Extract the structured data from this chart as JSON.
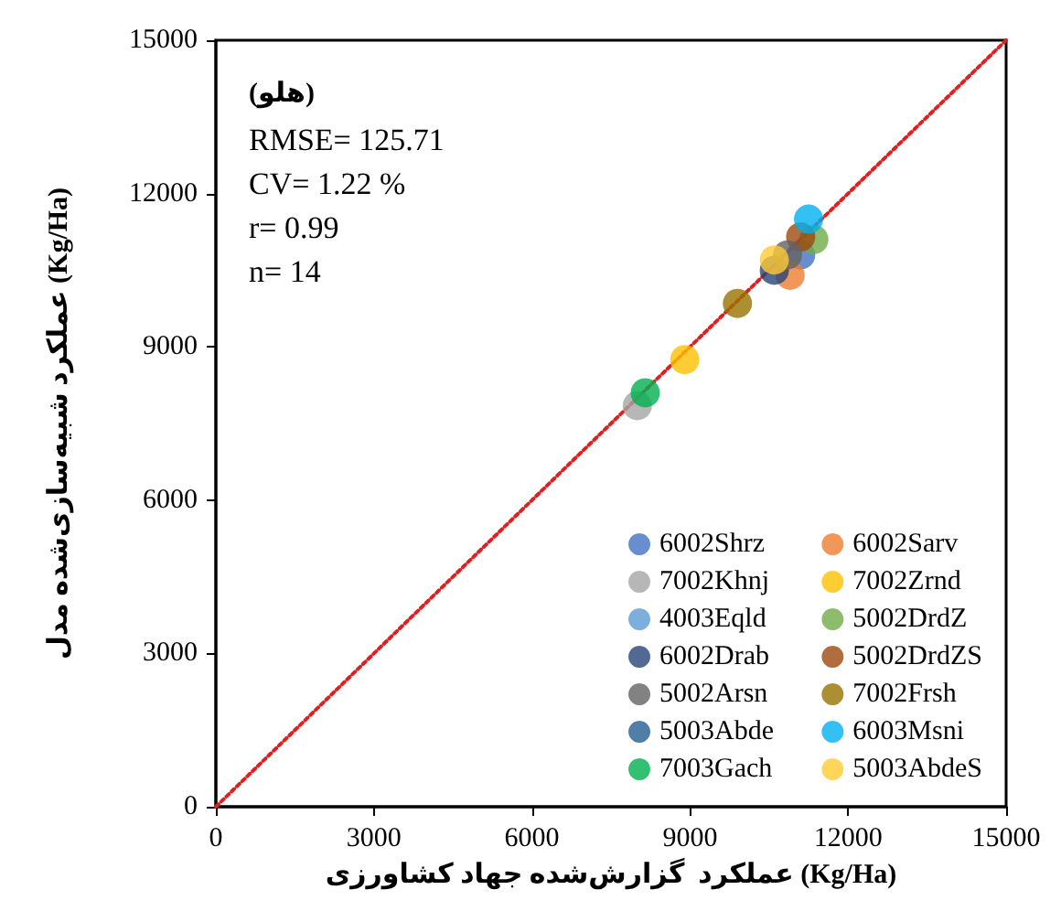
{
  "chart_data": {
    "type": "scatter",
    "xlabel": "عملکرد  گزارش‌شده جهاد کشاورزی (Kg/Ha)",
    "ylabel": "عملکرد شبیه‌سازی‌شده مدل (Kg/Ha)",
    "xlim": [
      0,
      15000
    ],
    "ylim": [
      0,
      15000
    ],
    "xticks": [
      0,
      3000,
      6000,
      9000,
      12000,
      15000
    ],
    "yticks": [
      0,
      3000,
      6000,
      9000,
      12000,
      15000
    ],
    "grid": false,
    "legend": "bottom right",
    "marker": "circle",
    "annotations": [
      "(هلو)",
      "RMSE= 125.71",
      "CV= 1.22 %",
      "r= 0.99",
      "n= 14"
    ],
    "series": [
      {
        "name": "6002Shrz",
        "color": "#4472c4",
        "x": [
          11100
        ],
        "values": [
          10800
        ]
      },
      {
        "name": "6002Sarv",
        "color": "#ed7d31",
        "x": [
          10900
        ],
        "values": [
          10400
        ]
      },
      {
        "name": "7002Khnj",
        "color": "#a5a5a5",
        "x": [
          8000
        ],
        "values": [
          7850
        ]
      },
      {
        "name": "7002Zrnd",
        "color": "#ffc000",
        "x": [
          8900
        ],
        "values": [
          8750
        ]
      },
      {
        "name": "4003Eqld",
        "color": "#5b9bd5",
        "x": [
          null
        ],
        "values": [
          null
        ]
      },
      {
        "name": "5002DrdZ",
        "color": "#70ad47",
        "x": [
          11350
        ],
        "values": [
          11100
        ]
      },
      {
        "name": "6002Drab",
        "color": "#264478",
        "x": [
          10600
        ],
        "values": [
          10500
        ]
      },
      {
        "name": "5002DrdZS",
        "color": "#9e480e",
        "x": [
          11100
        ],
        "values": [
          11150
        ]
      },
      {
        "name": "5002Arsn",
        "color": "#636363",
        "x": [
          10850
        ],
        "values": [
          10800
        ]
      },
      {
        "name": "7002Frsh",
        "color": "#997300",
        "x": [
          9900
        ],
        "values": [
          9850
        ]
      },
      {
        "name": "5003Abde",
        "color": "#255e91",
        "x": [
          null
        ],
        "values": [
          null
        ]
      },
      {
        "name": "6003Msni",
        "color": "#00b0f0",
        "x": [
          11250
        ],
        "values": [
          11500
        ]
      },
      {
        "name": "7003Gach",
        "color": "#00b050",
        "x": [
          8150
        ],
        "values": [
          8100
        ]
      },
      {
        "name": "5003AbdeS",
        "color": "#ffcb33",
        "x": [
          10600
        ],
        "values": [
          10700
        ]
      },
      {
        "type": "line",
        "color": "#e02020",
        "line_style": "dotted",
        "marker": "none",
        "x": [
          0,
          15000
        ],
        "values": [
          0,
          15000
        ]
      }
    ]
  }
}
